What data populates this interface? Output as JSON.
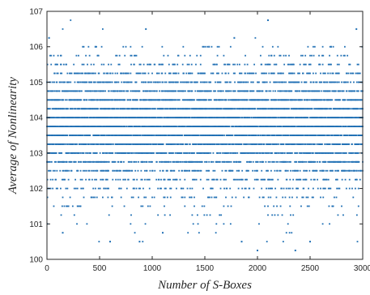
{
  "chart_data": {
    "type": "scatter",
    "title": "",
    "xlabel": "Number of S-Boxes",
    "ylabel": "Average of Nonlinearity",
    "xlim": [
      0,
      3000
    ],
    "ylim": [
      100,
      107
    ],
    "xticks": [
      0,
      500,
      1000,
      1500,
      2000,
      2500,
      3000
    ],
    "yticks": [
      100,
      101,
      102,
      103,
      104,
      105,
      106,
      107
    ],
    "grid": false,
    "legend": "none",
    "marker_color": "#1f6fb4",
    "y_levels": [
      100.25,
      100.5,
      100.75,
      101.0,
      101.25,
      101.5,
      101.75,
      102.0,
      102.25,
      102.5,
      102.75,
      103.0,
      103.25,
      103.5,
      103.75,
      104.0,
      104.25,
      104.5,
      104.75,
      105.0,
      105.25,
      105.5,
      105.75,
      106.0,
      106.25,
      106.5,
      106.75
    ],
    "level_density": [
      0.002,
      0.006,
      0.01,
      0.02,
      0.04,
      0.07,
      0.11,
      0.16,
      0.24,
      0.32,
      0.45,
      0.55,
      0.68,
      0.75,
      0.82,
      0.85,
      0.72,
      0.66,
      0.5,
      0.42,
      0.3,
      0.18,
      0.08,
      0.04,
      0.015,
      0.006,
      0.002
    ],
    "sample_points": [
      {
        "x": 20,
        "y": 106.25
      },
      {
        "x": 940,
        "y": 106.5
      },
      {
        "x": 1780,
        "y": 106.25
      },
      {
        "x": 2100,
        "y": 106.75
      },
      {
        "x": 2940,
        "y": 106.5
      },
      {
        "x": 460,
        "y": 106.0
      },
      {
        "x": 1540,
        "y": 106.0
      },
      {
        "x": 2700,
        "y": 106.0
      },
      {
        "x": 880,
        "y": 100.5
      },
      {
        "x": 2000,
        "y": 100.25
      },
      {
        "x": 2360,
        "y": 100.25
      },
      {
        "x": 1850,
        "y": 100.5
      },
      {
        "x": 2500,
        "y": 100.5
      },
      {
        "x": 600,
        "y": 100.5
      },
      {
        "x": 1100,
        "y": 100.75
      },
      {
        "x": 150,
        "y": 100.75
      }
    ]
  }
}
